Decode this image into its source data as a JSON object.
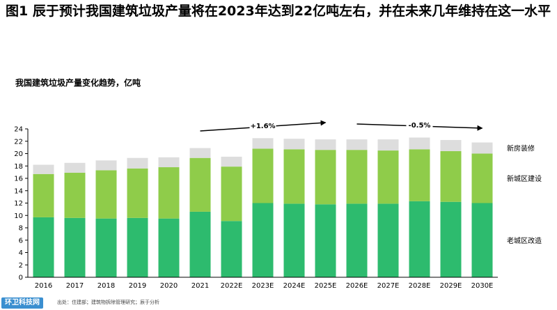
{
  "header": {
    "title": "图1 辰于预计我国建筑垃圾产量将在2023年达到22亿吨左右，并在未来几年维持在这一水平",
    "subtitle": "我国建筑垃圾产量变化趋势，亿吨"
  },
  "footer": {
    "logo_text": "环卫科技网",
    "source": "出处：住建部；建筑物拆除管理研究；辰于分析"
  },
  "colors": {
    "old_city": "#2dbb6e",
    "new_city": "#8fcc4a",
    "renovation": "#dddddd"
  },
  "chart_data": {
    "type": "bar",
    "stacked": true,
    "categories": [
      "2016",
      "2017",
      "2018",
      "2019",
      "2020",
      "2021",
      "2022E",
      "2023E",
      "2024E",
      "2025E",
      "2026E",
      "2027E",
      "2028E",
      "2029E",
      "2030E"
    ],
    "series": [
      {
        "name": "老城区改造",
        "values": [
          9.7,
          9.6,
          9.5,
          9.6,
          9.5,
          10.6,
          9.1,
          12.0,
          11.9,
          11.8,
          11.9,
          11.9,
          12.3,
          12.2,
          12.0
        ]
      },
      {
        "name": "新城区建设",
        "values": [
          7.0,
          7.3,
          7.8,
          8.0,
          8.3,
          8.7,
          8.8,
          8.8,
          8.8,
          8.8,
          8.7,
          8.6,
          8.4,
          8.2,
          8.0
        ]
      },
      {
        "name": "新房装修",
        "values": [
          1.5,
          1.6,
          1.6,
          1.7,
          1.6,
          1.6,
          1.6,
          1.7,
          1.7,
          1.7,
          1.7,
          1.8,
          1.9,
          1.8,
          1.8
        ]
      }
    ],
    "ylim": [
      0,
      24
    ],
    "yticks": [
      0,
      2,
      4,
      6,
      8,
      10,
      12,
      14,
      16,
      18,
      20,
      22,
      24
    ],
    "legend": "right",
    "grid": false,
    "annotations": [
      {
        "text": "+1.6%",
        "from_category": "2021",
        "to_category": "2025E"
      },
      {
        "text": "-0.5%",
        "from_category": "2026E",
        "to_category": "2030E"
      }
    ]
  }
}
